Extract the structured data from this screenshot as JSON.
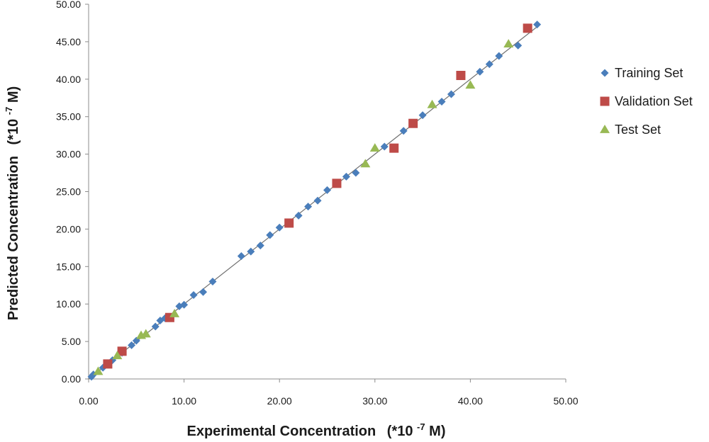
{
  "chart_data": {
    "type": "scatter",
    "title": "",
    "xlabel": "Experimental Concentration",
    "xlabel_unit": "(*10",
    "xlabel_exp": "-7",
    "xlabel_tail": " M)",
    "ylabel": "Predicted  Concentration",
    "ylabel_unit": "(*10",
    "ylabel_exp": "-7",
    "ylabel_tail": " M)",
    "xlim": [
      0,
      50
    ],
    "ylim": [
      0,
      50
    ],
    "xticks": [
      "0.00",
      "10.00",
      "20.00",
      "30.00",
      "40.00",
      "50.00"
    ],
    "yticks": [
      "0.00",
      "5.00",
      "10.00",
      "15.00",
      "20.00",
      "25.00",
      "30.00",
      "35.00",
      "40.00",
      "45.00",
      "50.00"
    ],
    "grid": false,
    "legend_position": "right",
    "trendline": {
      "x": [
        0,
        47
      ],
      "y": [
        0,
        47
      ],
      "color": "#707070"
    },
    "series": [
      {
        "name": "Training Set",
        "marker": "diamond",
        "color": "#4a7ebb",
        "x": [
          0.3,
          0.5,
          1.5,
          2.5,
          3.5,
          4.5,
          5,
          7,
          7.5,
          8,
          9.5,
          10,
          11,
          12,
          13,
          16,
          17,
          18,
          19,
          20,
          22,
          23,
          24,
          25,
          27,
          28,
          31,
          33,
          35,
          37,
          38,
          41,
          42,
          43,
          45,
          47
        ],
        "y": [
          0.3,
          0.6,
          1.5,
          2.5,
          3.5,
          4.5,
          5.1,
          7,
          7.8,
          8.1,
          9.7,
          9.9,
          11.2,
          11.6,
          13,
          16.4,
          17,
          17.8,
          19.2,
          20.2,
          21.8,
          23,
          23.8,
          25.2,
          27,
          27.5,
          31,
          33.1,
          35.2,
          37,
          38,
          41,
          42,
          43.1,
          44.5,
          47.3
        ]
      },
      {
        "name": "Validation Set",
        "marker": "square",
        "color": "#be4b48",
        "x": [
          2,
          3.5,
          8.5,
          21,
          26,
          32,
          34,
          39,
          46
        ],
        "y": [
          2,
          3.7,
          8.2,
          20.8,
          26.1,
          30.8,
          34.1,
          40.5,
          46.8
        ]
      },
      {
        "name": "Test Set",
        "marker": "triangle",
        "color": "#98b954",
        "x": [
          1,
          3,
          5.5,
          6,
          9,
          29,
          30,
          36,
          40,
          44
        ],
        "y": [
          1,
          3.1,
          5.8,
          6,
          8.7,
          28.7,
          30.8,
          36.6,
          39.2,
          44.7
        ]
      }
    ]
  }
}
